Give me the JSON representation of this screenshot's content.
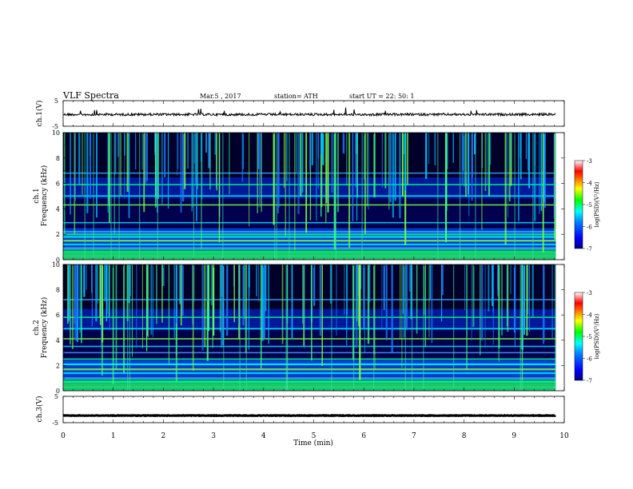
{
  "header": {
    "title": "VLF Spectra",
    "date": "Mar.5 , 2017",
    "station": "station= ATH",
    "start": "start UT = 22: 50: 1"
  },
  "chart_data": [
    {
      "type": "line",
      "panel": "ch1",
      "ylabel": "ch.1(V)",
      "ylim": [
        -5,
        5
      ],
      "yticks": [
        "5",
        "-5"
      ],
      "x_range_min": [
        0,
        9.83
      ],
      "y_level": -0.4,
      "trace_color": "#000000"
    },
    {
      "type": "heatmap",
      "panel": "ch1-spectrogram",
      "ylabel_top": "ch.1",
      "ylabel": "Frequency (kHz)",
      "ylim": [
        0,
        10
      ],
      "yticks": [
        "0",
        "2",
        "4",
        "6",
        "8",
        "10"
      ],
      "x_range_min": [
        0,
        9.83
      ],
      "bands_khz": [
        0.3,
        0.6,
        0.9,
        1.2,
        1.5,
        1.8,
        2.0,
        2.2,
        2.9,
        4.3,
        5.0,
        5.9,
        6.8
      ],
      "colorbar": {
        "label": "log(PSD)(V²/Hz)",
        "range": [
          -7,
          -3
        ],
        "ticks": [
          "-3",
          "-4",
          "-5",
          "-6",
          "-7"
        ],
        "colormap": [
          "#000080",
          "#0000ff",
          "#0080ff",
          "#00ffff",
          "#00ff00",
          "#ffff00",
          "#ff8000",
          "#ff0000",
          "#ffffff"
        ]
      }
    },
    {
      "type": "heatmap",
      "panel": "ch2-spectrogram",
      "ylabel_top": "ch.2",
      "ylabel": "Frequency (kHz)",
      "ylim": [
        0,
        10
      ],
      "yticks": [
        "0",
        "2",
        "4",
        "6",
        "8",
        "10"
      ],
      "x_range_min": [
        0,
        9.83
      ],
      "bands_khz": [
        0.3,
        0.7,
        1.0,
        1.4,
        1.7,
        2.1,
        2.5,
        3.0,
        3.5,
        4.1,
        4.9,
        5.8,
        7.2
      ],
      "colorbar": {
        "label": "log(PSD)(V²/Hz)",
        "range": [
          -7,
          -3
        ],
        "ticks": [
          "-3",
          "-4",
          "-5",
          "-6",
          "-7"
        ],
        "colormap": [
          "#000080",
          "#0000ff",
          "#0080ff",
          "#00ffff",
          "#00ff00",
          "#ffff00",
          "#ff8000",
          "#ff0000",
          "#ffffff"
        ]
      }
    },
    {
      "type": "line",
      "panel": "ch3",
      "ylabel": "ch.3(V)",
      "ylim": [
        -5,
        5
      ],
      "yticks": [
        "5",
        "-5"
      ],
      "x_range_min": [
        0,
        9.83
      ],
      "y_level": -2.3,
      "trace_color": "#000000"
    }
  ],
  "xaxis": {
    "label": "Time (min)",
    "ticks": [
      "0",
      "1",
      "2",
      "3",
      "4",
      "5",
      "6",
      "7",
      "8",
      "9",
      "10"
    ],
    "range": [
      0,
      10
    ]
  }
}
